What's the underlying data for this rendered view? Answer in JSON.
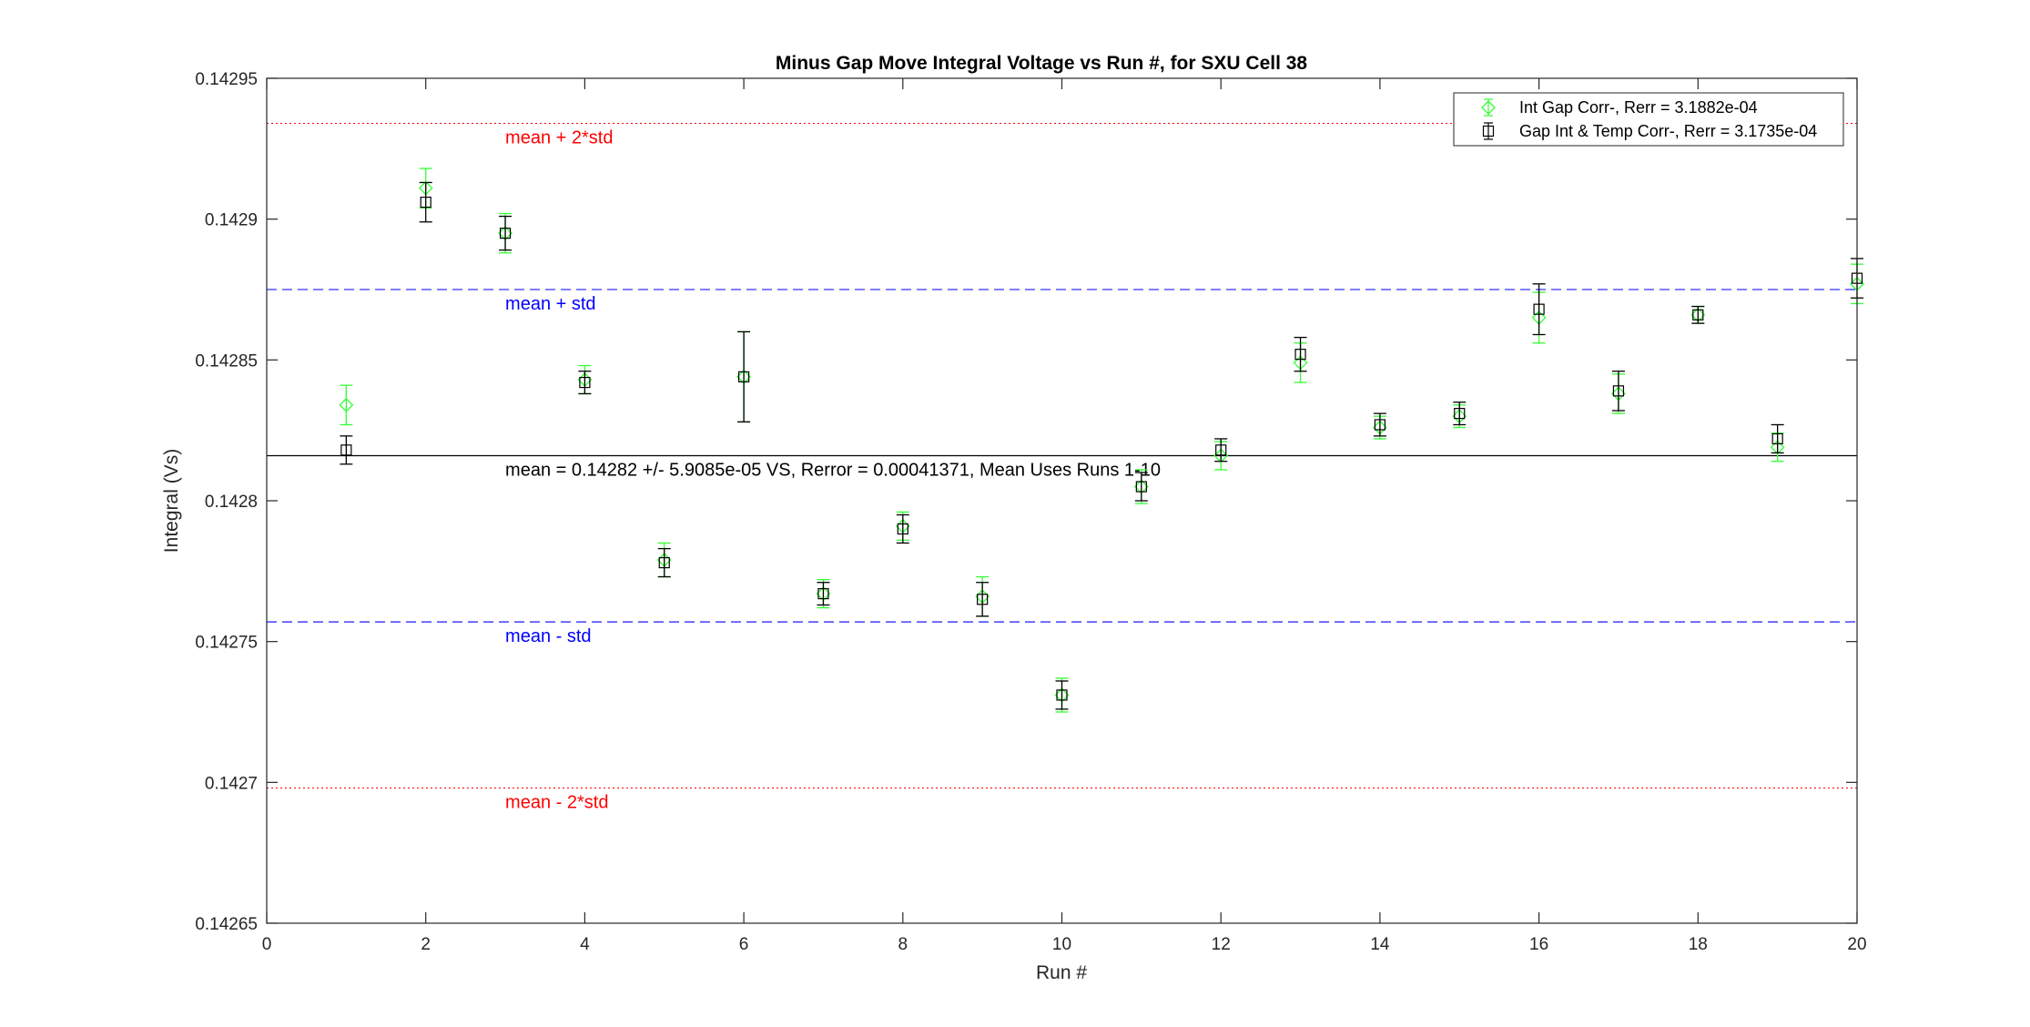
{
  "chart_data": {
    "type": "scatter",
    "title": "Minus Gap Move Integral Voltage vs Run #, for SXU Cell 38",
    "xlabel": "Run #",
    "ylabel": "Integral (Vs)",
    "xlim": [
      0,
      20
    ],
    "ylim": [
      0.14265,
      0.14295
    ],
    "x_ticks": [
      0,
      2,
      4,
      6,
      8,
      10,
      12,
      14,
      16,
      18,
      20
    ],
    "x_tick_labels": [
      "0",
      "2",
      "4",
      "6",
      "8",
      "10",
      "12",
      "14",
      "16",
      "18",
      "20"
    ],
    "y_ticks": [
      0.14265,
      0.1427,
      0.14275,
      0.1428,
      0.14285,
      0.1429,
      0.14295
    ],
    "y_tick_labels": [
      "0.14265",
      "0.1427",
      "0.14275",
      "0.1428",
      "0.14285",
      "0.1429",
      "0.14295"
    ],
    "grid": false,
    "legend_position": "top-right",
    "series": [
      {
        "name": "Int Gap Corr-, Rerr = 3.1882e-04",
        "marker": "diamond",
        "color": "#33ff33",
        "x": [
          1,
          2,
          3,
          4,
          5,
          6,
          7,
          8,
          9,
          10,
          11,
          12,
          13,
          14,
          15,
          16,
          17,
          18,
          19,
          20
        ],
        "y": [
          0.142834,
          0.142911,
          0.142895,
          0.142843,
          0.142779,
          0.142844,
          0.142767,
          0.142791,
          0.142766,
          0.142731,
          0.142805,
          0.142816,
          0.142849,
          0.142826,
          0.14283,
          0.142865,
          0.142838,
          0.142866,
          0.142819,
          0.142877
        ],
        "err": [
          7e-06,
          7e-06,
          7e-06,
          5e-06,
          6e-06,
          1.6e-05,
          5e-06,
          5e-06,
          7e-06,
          6e-06,
          6e-06,
          5e-06,
          7e-06,
          4e-06,
          4e-06,
          9e-06,
          7e-06,
          3e-06,
          5e-06,
          7e-06
        ]
      },
      {
        "name": "Gap Int & Temp Corr-, Rerr = 3.1735e-04",
        "marker": "square",
        "color": "#000000",
        "x": [
          1,
          2,
          3,
          4,
          5,
          6,
          7,
          8,
          9,
          10,
          11,
          12,
          13,
          14,
          15,
          16,
          17,
          18,
          19,
          20
        ],
        "y": [
          0.142818,
          0.142906,
          0.142895,
          0.142842,
          0.142778,
          0.142844,
          0.142767,
          0.14279,
          0.142765,
          0.142731,
          0.142805,
          0.142818,
          0.142852,
          0.142827,
          0.142831,
          0.142868,
          0.142839,
          0.142866,
          0.142822,
          0.142879
        ],
        "err": [
          5e-06,
          7e-06,
          6e-06,
          4e-06,
          5e-06,
          1.6e-05,
          4e-06,
          5e-06,
          6e-06,
          5e-06,
          5e-06,
          4e-06,
          6e-06,
          4e-06,
          4e-06,
          9e-06,
          7e-06,
          3e-06,
          5e-06,
          7e-06
        ]
      }
    ],
    "reference_lines": [
      {
        "y": 0.142934,
        "label": "mean + 2*std",
        "color": "#ff0000",
        "style": "dotted"
      },
      {
        "y": 0.142875,
        "label": "mean + std",
        "color": "#0000ff",
        "style": "dashed"
      },
      {
        "y": 0.142816,
        "label": "mean = 0.14282 +/- 5.9085e-05 VS, Rerror = 0.00041371, Mean Uses Runs 1-10",
        "color": "#000000",
        "style": "solid"
      },
      {
        "y": 0.142757,
        "label": "mean - std",
        "color": "#0000ff",
        "style": "dashed"
      },
      {
        "y": 0.142698,
        "label": "mean - 2*std",
        "color": "#ff0000",
        "style": "dotted"
      }
    ],
    "reference_label_x": 3
  }
}
